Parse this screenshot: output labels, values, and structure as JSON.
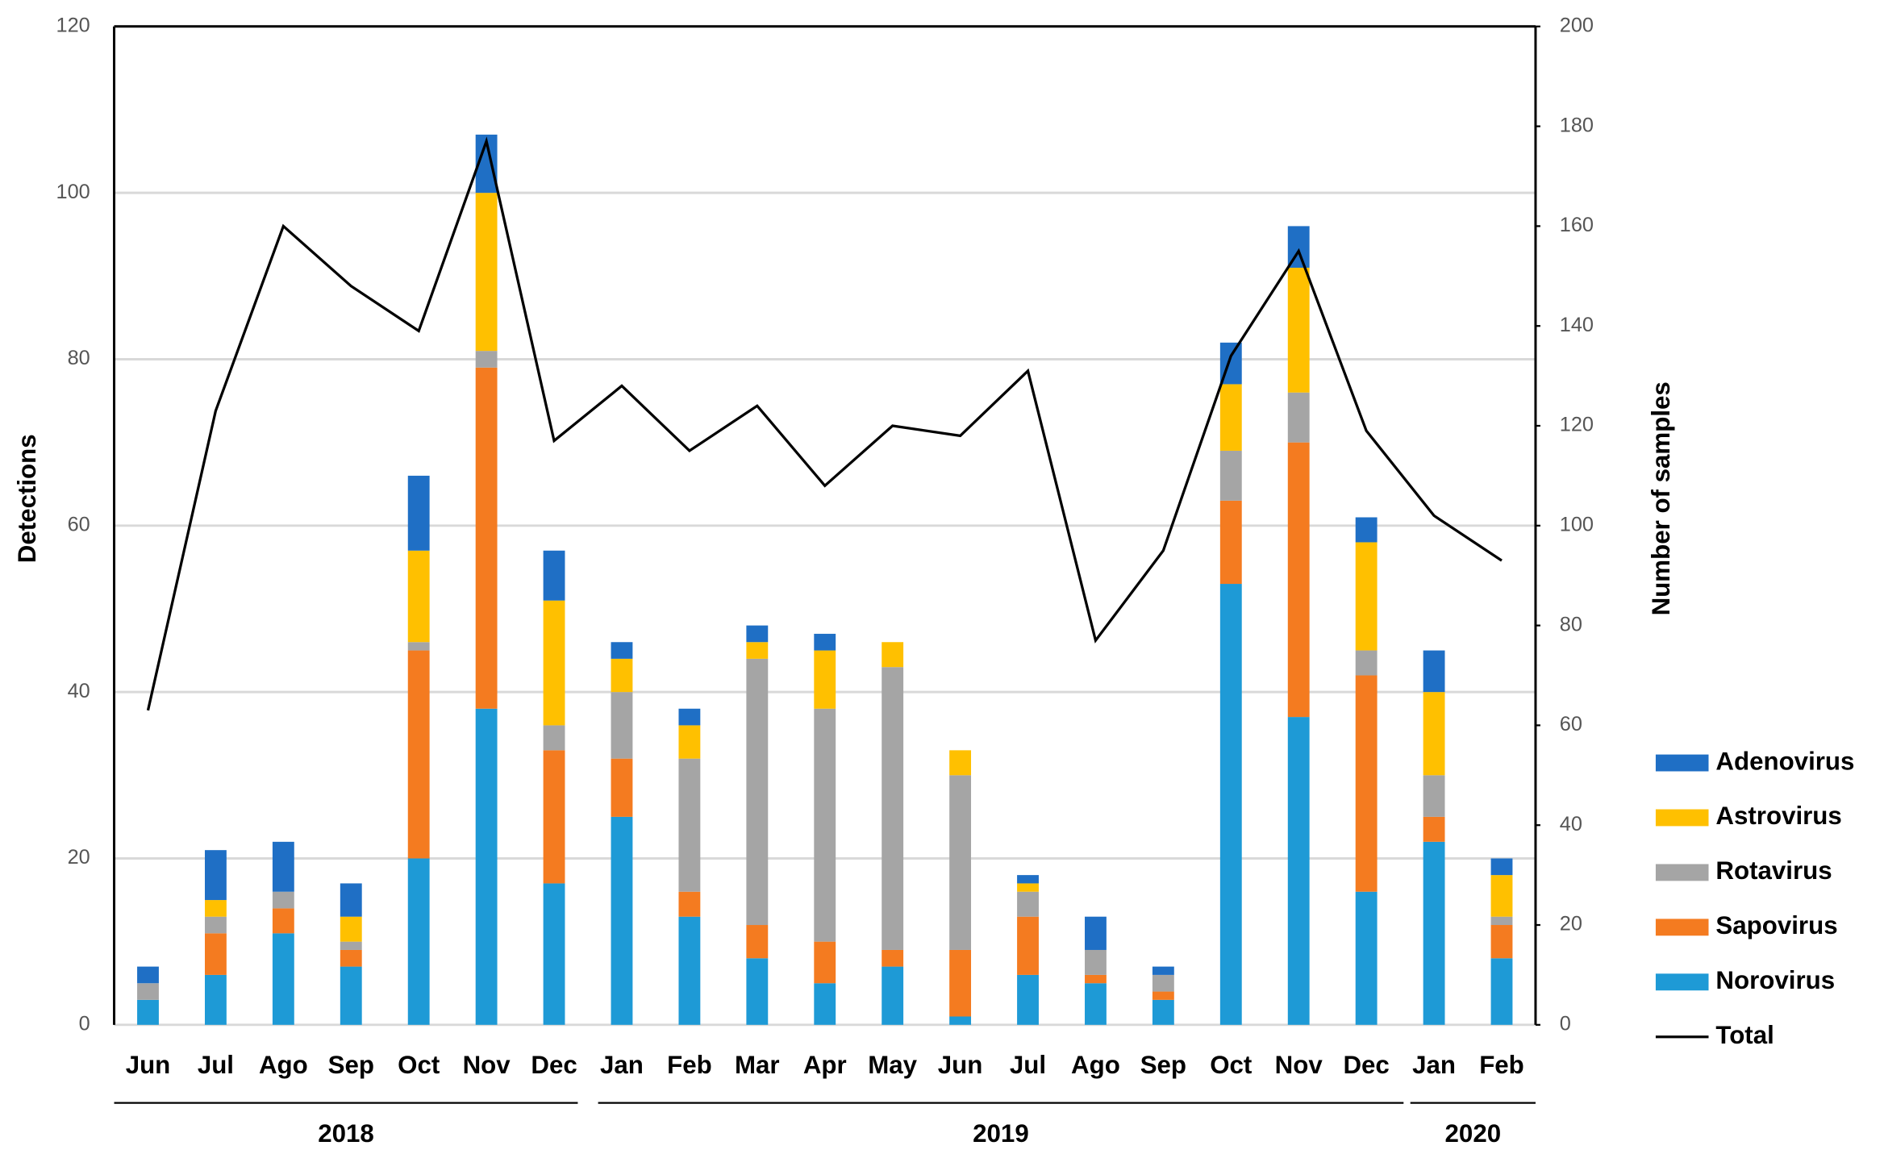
{
  "chart_data": {
    "type": "bar",
    "stacked": true,
    "categories": [
      "Jun",
      "Jul",
      "Ago",
      "Sep",
      "Oct",
      "Nov",
      "Dec",
      "Jan",
      "Feb",
      "Mar",
      "Apr",
      "May",
      "Jun",
      "Jul",
      "Ago",
      "Sep",
      "Oct",
      "Nov",
      "Dec",
      "Jan",
      "Feb"
    ],
    "x_groups": [
      "2018",
      "2019",
      "2020"
    ],
    "y_label": "Detections",
    "y2_label": "Number of samples",
    "ylim": [
      0,
      120
    ],
    "yticks": [
      0,
      20,
      40,
      60,
      80,
      100,
      120
    ],
    "y2lim": [
      0,
      200
    ],
    "y2ticks": [
      0,
      20,
      40,
      60,
      80,
      100,
      120,
      140,
      160,
      180,
      200
    ],
    "grid": true,
    "legend": "right",
    "series": [
      {
        "name": "Norovirus",
        "color": "#1e9ad6",
        "values": [
          3,
          6,
          11,
          7,
          20,
          38,
          17,
          25,
          13,
          8,
          5,
          7,
          1,
          6,
          5,
          3,
          53,
          37,
          16,
          22,
          8
        ]
      },
      {
        "name": "Sapovirus",
        "color": "#f47b20",
        "values": [
          0,
          5,
          3,
          2,
          25,
          41,
          16,
          7,
          3,
          4,
          5,
          2,
          8,
          7,
          1,
          1,
          10,
          33,
          26,
          3,
          4
        ]
      },
      {
        "name": "Rotavirus",
        "color": "#a5a5a5",
        "values": [
          2,
          2,
          2,
          1,
          1,
          2,
          3,
          8,
          16,
          32,
          28,
          34,
          21,
          3,
          3,
          2,
          6,
          6,
          3,
          5,
          1
        ]
      },
      {
        "name": "Astrovirus",
        "color": "#ffc000",
        "values": [
          0,
          2,
          0,
          3,
          11,
          19,
          15,
          4,
          4,
          2,
          7,
          3,
          3,
          1,
          0,
          0,
          8,
          15,
          13,
          10,
          5
        ]
      },
      {
        "name": "Adenovirus",
        "color": "#1f6fc5",
        "values": [
          2,
          6,
          6,
          4,
          9,
          7,
          6,
          2,
          2,
          2,
          2,
          0,
          0,
          1,
          4,
          1,
          5,
          5,
          3,
          5,
          2
        ]
      },
      {
        "name": "Total",
        "color": "#000000",
        "type": "line",
        "axis": "y2",
        "values": [
          63,
          123,
          160,
          148,
          139,
          177,
          117,
          128,
          115,
          124,
          108,
          120,
          118,
          131,
          77,
          95,
          134,
          155,
          119,
          102,
          93
        ]
      }
    ]
  }
}
